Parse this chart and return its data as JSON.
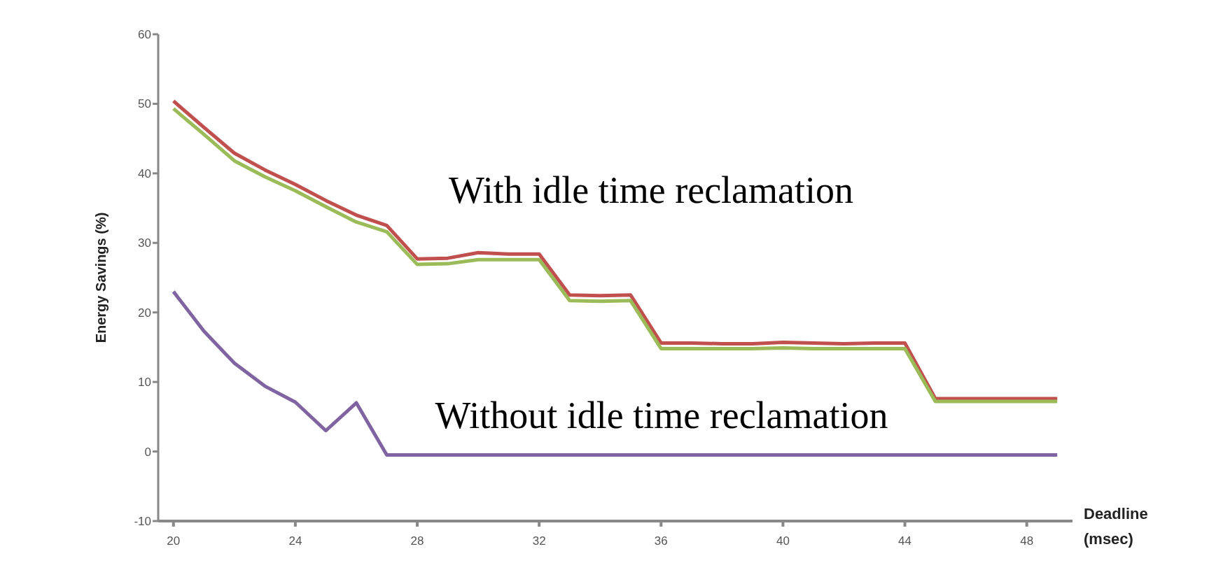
{
  "chart_data": {
    "type": "line",
    "xlabel": "Deadline (msec)",
    "ylabel": "Energy Savings (%)",
    "x": [
      20,
      21,
      22,
      23,
      24,
      25,
      26,
      27,
      28,
      29,
      30,
      31,
      32,
      33,
      34,
      35,
      36,
      37,
      38,
      39,
      40,
      41,
      42,
      43,
      44,
      45,
      46,
      47,
      48,
      49
    ],
    "series": [
      {
        "color": "#c0504d",
        "values": [
          50.4,
          46.6,
          42.9,
          40.5,
          38.4,
          36.1,
          34,
          32.5,
          27.7,
          27.8,
          28.6,
          28.4,
          28.4,
          22.5,
          22.4,
          22.5,
          15.6,
          15.6,
          15.5,
          15.5,
          15.7,
          15.6,
          15.5,
          15.6,
          15.6,
          7.6,
          7.6,
          7.6,
          7.6,
          7.6
        ]
      },
      {
        "color": "#9bbb59",
        "values": [
          49.3,
          45.6,
          41.8,
          39.5,
          37.5,
          35.2,
          33,
          31.6,
          26.9,
          27,
          27.6,
          27.6,
          27.6,
          21.7,
          21.6,
          21.7,
          14.8,
          14.8,
          14.8,
          14.8,
          14.9,
          14.8,
          14.8,
          14.8,
          14.8,
          7.2,
          7.2,
          7.2,
          7.2,
          7.2
        ]
      },
      {
        "color": "#8064a2",
        "values": [
          23,
          17.3,
          12.7,
          9.4,
          7.1,
          3,
          7,
          -0.5,
          -0.5,
          -0.5,
          -0.5,
          -0.5,
          -0.5,
          -0.5,
          -0.5,
          -0.5,
          -0.5,
          -0.5,
          -0.5,
          -0.5,
          -0.5,
          -0.5,
          -0.5,
          -0.5,
          -0.5,
          -0.5,
          -0.5,
          -0.5,
          -0.5,
          -0.5
        ]
      }
    ],
    "xlim": [
      19.5,
      49.5
    ],
    "xticks": [
      20,
      24,
      28,
      32,
      36,
      40,
      44,
      48
    ],
    "ylim": [
      -10,
      60
    ],
    "yticks": [
      -10,
      0,
      10,
      20,
      30,
      40,
      50,
      60
    ],
    "annotations": [
      "With idle time reclamation",
      "Without idle time reclamation"
    ],
    "grid": false,
    "legend": false,
    "marker": "none",
    "line_style": "solid"
  }
}
